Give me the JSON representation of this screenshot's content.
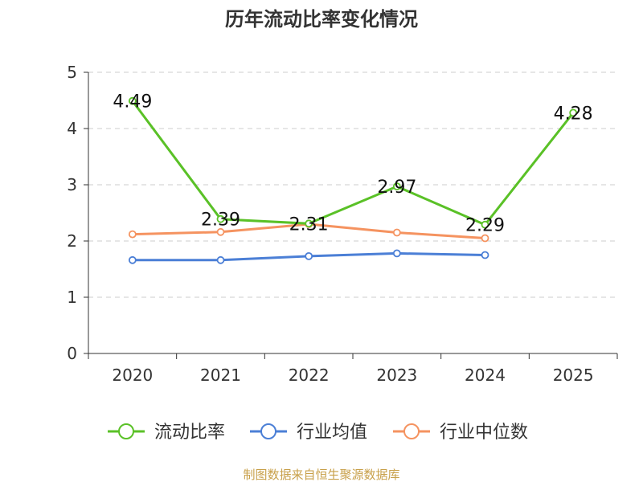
{
  "chart_data": {
    "type": "line",
    "title": "历年流动比率变化情况",
    "categories": [
      "2020",
      "2021",
      "2022",
      "2023",
      "2024",
      "2025"
    ],
    "yticks": [
      "0",
      "1",
      "2",
      "3",
      "4",
      "5"
    ],
    "ylim": [
      0,
      5
    ],
    "xlabel": "",
    "ylabel": "",
    "grid": true,
    "legend_position": "bottom-center",
    "series": [
      {
        "name": "流动比率",
        "color": "#5ac127",
        "values": [
          4.49,
          2.39,
          2.31,
          2.97,
          2.29,
          4.28
        ],
        "labels": [
          "4.49",
          "2.39",
          "2.31",
          "2.97",
          "2.29",
          "4.28"
        ]
      },
      {
        "name": "行业均值",
        "color": "#4b7fd6",
        "values": [
          1.66,
          1.66,
          1.73,
          1.78,
          1.75,
          null
        ]
      },
      {
        "name": "行业中位数",
        "color": "#f59360",
        "values": [
          2.12,
          2.16,
          2.3,
          2.15,
          2.05,
          null
        ]
      }
    ],
    "source": "制图数据来自恒生聚源数据库",
    "source_color": "#c8a04a"
  }
}
